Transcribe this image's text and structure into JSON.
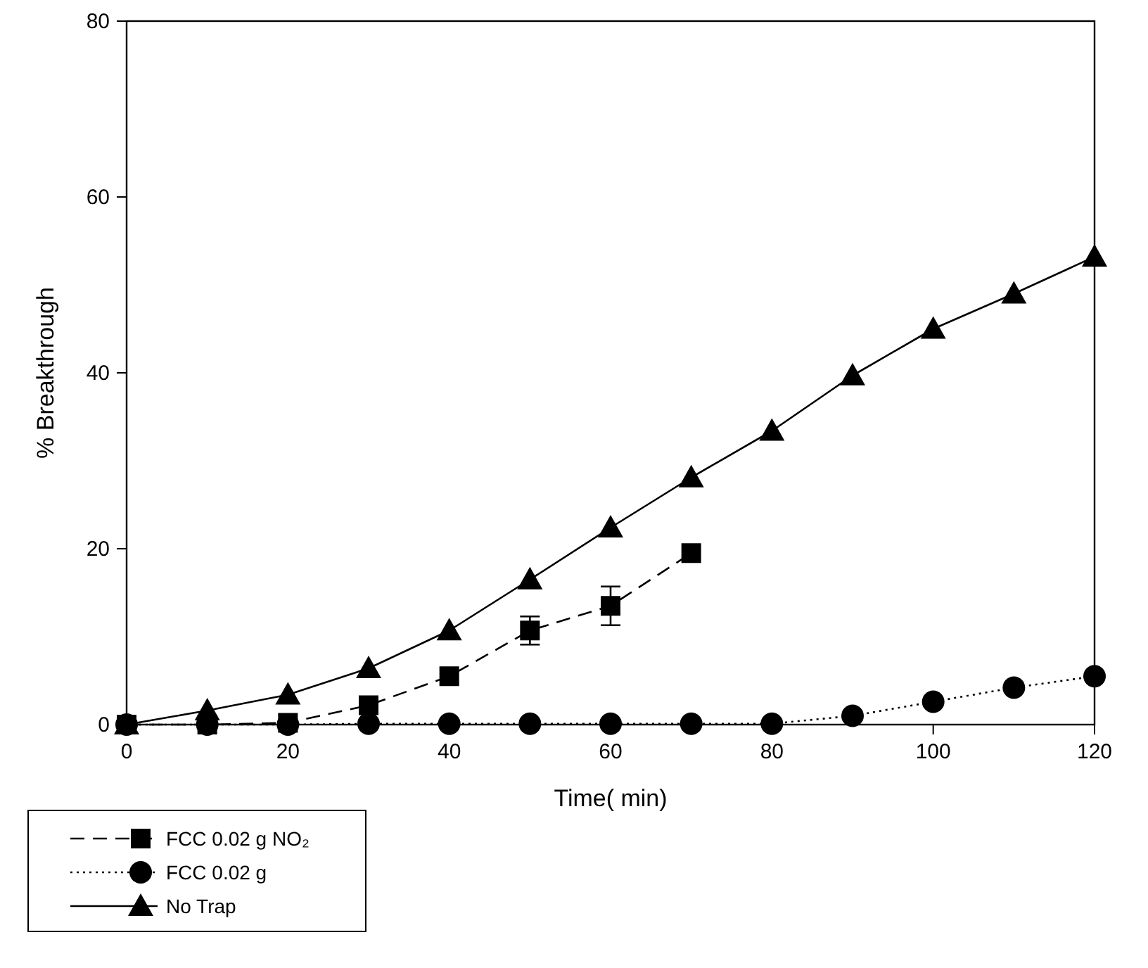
{
  "chart_data": {
    "type": "line",
    "xlabel": "Time( min)",
    "ylabel": "% Breakthrough",
    "x": [
      0,
      10,
      20,
      30,
      40,
      50,
      60,
      70,
      80,
      90,
      100,
      110,
      120
    ],
    "xlim": [
      0,
      120
    ],
    "xticks": [
      0,
      20,
      40,
      60,
      80,
      100,
      120
    ],
    "ylim": [
      0,
      80
    ],
    "yticks": [
      0,
      20,
      40,
      60,
      80
    ],
    "grid": false,
    "legend": "bottom left",
    "series": [
      {
        "name": "FCC 0.02 g NO₂",
        "color": "#000000",
        "marker": "square",
        "line_style": "dashed",
        "x": [
          0,
          10,
          20,
          30,
          40,
          50,
          60,
          70
        ],
        "values": [
          0,
          0,
          0.2,
          2.2,
          5.5,
          10.7,
          13.5,
          19.5
        ],
        "errors": [
          null,
          null,
          null,
          null,
          null,
          1.6,
          2.2,
          null
        ]
      },
      {
        "name": "FCC 0.02 g",
        "color": "#000000",
        "marker": "circle",
        "line_style": "dotted",
        "values": [
          0,
          0,
          0,
          0.1,
          0.1,
          0.1,
          0.1,
          0.1,
          0.1,
          1,
          2.6,
          4.2,
          5.5
        ]
      },
      {
        "name": "No Trap",
        "color": "#000000",
        "marker": "triangle",
        "line_style": "solid",
        "values": [
          0,
          1.6,
          3.4,
          6.4,
          10.7,
          16.5,
          22.4,
          28.1,
          33.4,
          39.7,
          45,
          49,
          53.2
        ]
      }
    ]
  }
}
